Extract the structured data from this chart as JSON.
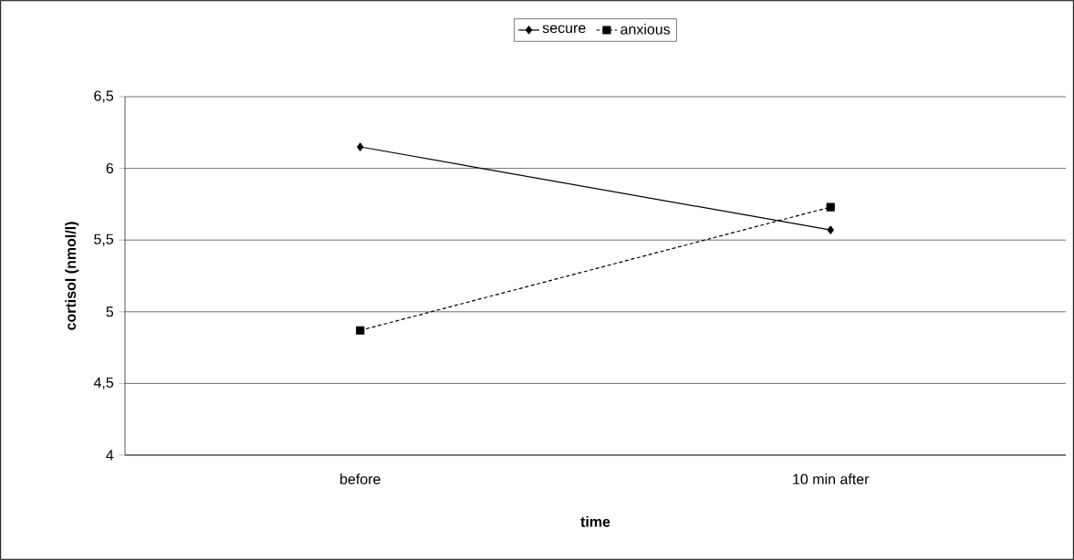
{
  "chart_data": {
    "type": "line",
    "xlabel": "time",
    "ylabel": "cortisol (nmol/l)",
    "categories": [
      "before",
      "10 min after"
    ],
    "series": [
      {
        "name": "secure",
        "color": "#000000",
        "marker": "diamond",
        "line_style": "solid",
        "values": [
          6.15,
          5.57
        ]
      },
      {
        "name": "anxious",
        "color": "#000000",
        "marker": "square",
        "line_style": "dashed",
        "values": [
          4.87,
          5.73
        ]
      }
    ],
    "ylim": [
      4,
      6.5
    ],
    "yticks": [
      4,
      {
        "value": 4.5,
        "label": "4,5"
      },
      5,
      {
        "value": 5.5,
        "label": "5,5"
      },
      6,
      {
        "value": 6.5,
        "label": "6,5"
      }
    ],
    "grid": "y",
    "legend": "top"
  }
}
